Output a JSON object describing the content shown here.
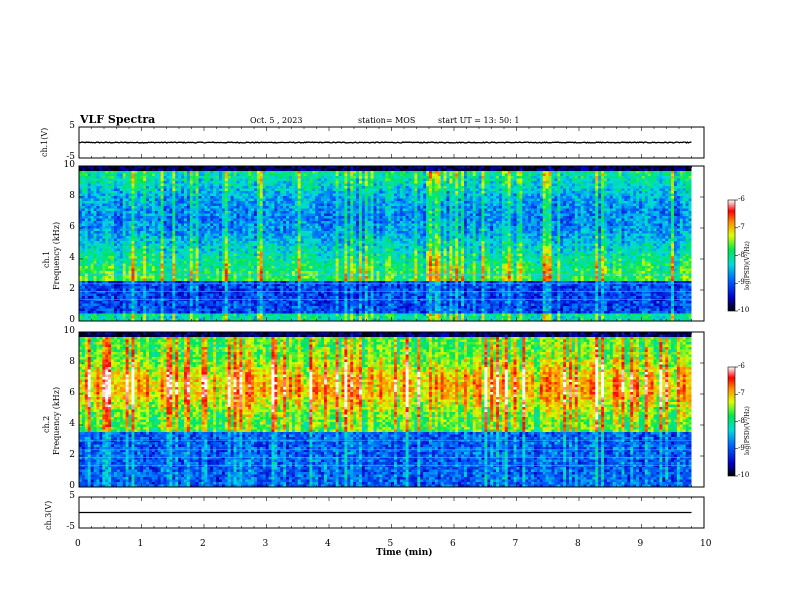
{
  "header": {
    "title": "VLF Spectra",
    "date": "Oct. 5 , 2023",
    "station": "station= MOS",
    "start": "start UT = 13: 50: 1"
  },
  "chart_data": [
    {
      "type": "line",
      "name": "ch1-waveform",
      "ylabel": "ch.1(V)",
      "ylim": [
        -5,
        5
      ],
      "yticks": [
        "5",
        "-5"
      ],
      "xlim": [
        0,
        10
      ],
      "level": 0
    },
    {
      "type": "heatmap",
      "name": "ch1-spectrogram",
      "ylabel": "ch.1\nFrequency (kHz)",
      "ylabel_top": "ch.1",
      "ylabel_bottom": "Frequency (kHz)",
      "ylim": [
        0,
        10
      ],
      "yticks": [
        "0",
        "2",
        "4",
        "6",
        "8",
        "10"
      ],
      "xlim": [
        0,
        9.8
      ],
      "colorbar": {
        "label": "log(PSD)(V²/Hz)",
        "range": [
          -10,
          -6
        ],
        "ticks": [
          "-6",
          "-7",
          "-8",
          "-9",
          "-10"
        ]
      }
    },
    {
      "type": "heatmap",
      "name": "ch2-spectrogram",
      "ylabel_top": "ch.2",
      "ylabel_bottom": "Frequency (kHz)",
      "ylim": [
        0,
        10
      ],
      "yticks": [
        "0",
        "2",
        "4",
        "6",
        "8",
        "10"
      ],
      "xlim": [
        0,
        9.8
      ],
      "colorbar": {
        "label": "log(PSD)(V²/Hz)",
        "range": [
          -10,
          -6
        ],
        "ticks": [
          "-6",
          "-7",
          "-8",
          "-9",
          "-10"
        ]
      }
    },
    {
      "type": "line",
      "name": "ch3-waveform",
      "ylabel": "ch.3(V)",
      "ylim": [
        -5,
        5
      ],
      "yticks": [
        "5",
        "-5"
      ],
      "xlim": [
        0,
        10
      ],
      "level": 0
    }
  ],
  "x_axis": {
    "label": "Time (min)",
    "ticks": [
      "0",
      "1",
      "2",
      "3",
      "4",
      "5",
      "6",
      "7",
      "8",
      "9",
      "10"
    ]
  },
  "colors": {
    "colormap": [
      "#000000",
      "#0000c8",
      "#0064ff",
      "#00dcdc",
      "#00e650",
      "#dcff00",
      "#ff8c00",
      "#ff0000",
      "#ffffff"
    ]
  }
}
